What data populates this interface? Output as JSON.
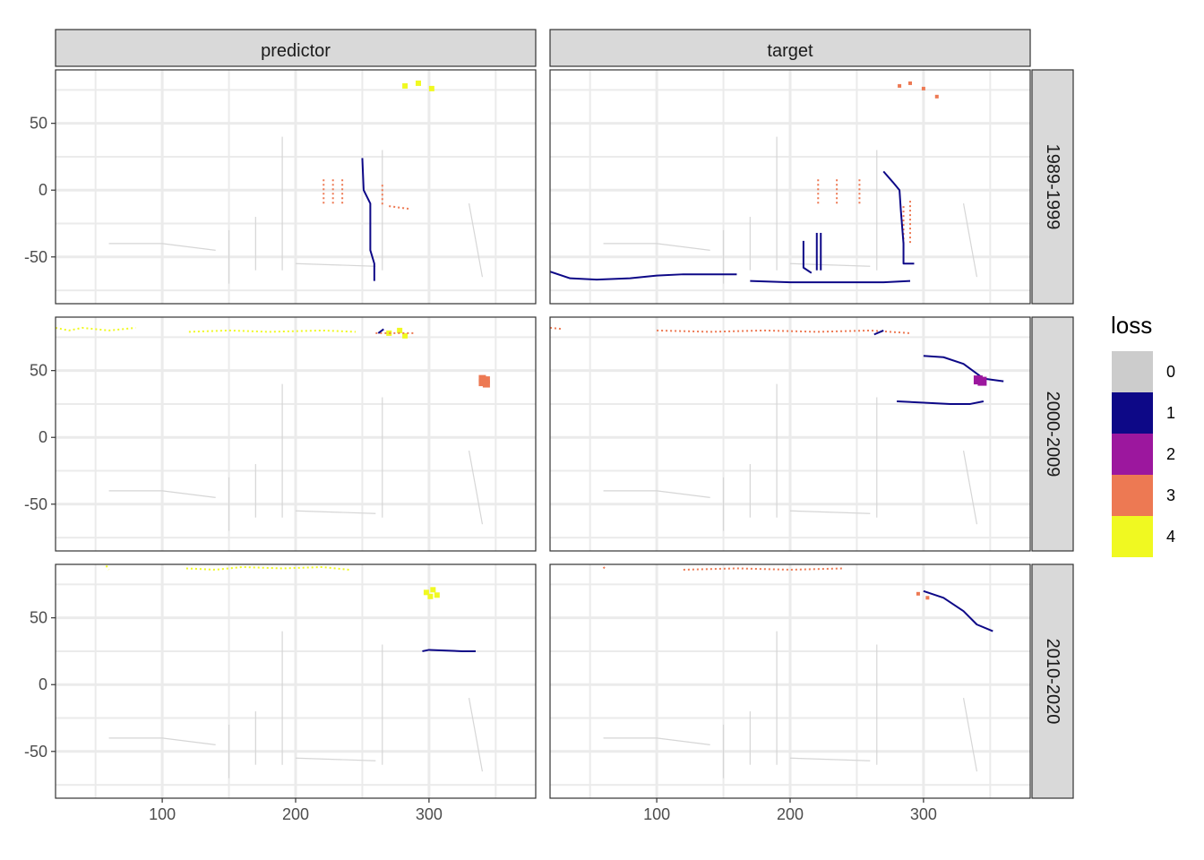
{
  "chart_data": {
    "type": "heatmap",
    "facet_columns": [
      "predictor",
      "target"
    ],
    "facet_rows": [
      "1989-1999",
      "2000-2009",
      "2010-2020"
    ],
    "x_ticks": [
      100,
      200,
      300
    ],
    "y_ticks": [
      50,
      0,
      -50
    ],
    "xlim": [
      20,
      380
    ],
    "ylim": [
      -85,
      90
    ],
    "legend": {
      "title": "loss",
      "position": "right",
      "levels": [
        {
          "label": "0",
          "color": "#cccccc"
        },
        {
          "label": "1",
          "color": "#0d0887"
        },
        {
          "label": "2",
          "color": "#9c179e"
        },
        {
          "label": "3",
          "color": "#ed7953"
        },
        {
          "label": "4",
          "color": "#f0f921"
        }
      ]
    },
    "grid": true,
    "background_color": "#ffffff",
    "panels": [
      {
        "col": "predictor",
        "row": "1989-1999",
        "tracks": [
          {
            "loss": 4,
            "type": "blob",
            "points": [
              [
                282,
                78
              ],
              [
                292,
                80
              ],
              [
                302,
                76
              ]
            ],
            "r": 3
          },
          {
            "loss": 3,
            "type": "dash",
            "points": [
              [
                221,
                8
              ],
              [
                221,
                -12
              ]
            ]
          },
          {
            "loss": 3,
            "type": "dash",
            "points": [
              [
                228,
                8
              ],
              [
                228,
                -12
              ]
            ]
          },
          {
            "loss": 3,
            "type": "dash",
            "points": [
              [
                235,
                8
              ],
              [
                235,
                -12
              ]
            ]
          },
          {
            "loss": 3,
            "type": "dash",
            "points": [
              [
                265,
                4
              ],
              [
                265,
                -12
              ]
            ]
          },
          {
            "loss": 3,
            "type": "dash",
            "points": [
              [
                270,
                -12
              ],
              [
                285,
                -14
              ]
            ]
          },
          {
            "loss": 1,
            "type": "line",
            "points": [
              [
                250,
                24
              ],
              [
                251,
                0
              ],
              [
                256,
                -10
              ],
              [
                256,
                -45
              ],
              [
                259,
                -55
              ],
              [
                259,
                -68
              ]
            ]
          }
        ]
      },
      {
        "col": "target",
        "row": "1989-1999",
        "tracks": [
          {
            "loss": 3,
            "type": "blob",
            "points": [
              [
                282,
                78
              ],
              [
                290,
                80
              ],
              [
                300,
                76
              ],
              [
                310,
                70
              ]
            ],
            "r": 2
          },
          {
            "loss": 3,
            "type": "dash",
            "points": [
              [
                221,
                8
              ],
              [
                221,
                -12
              ]
            ]
          },
          {
            "loss": 3,
            "type": "dash",
            "points": [
              [
                235,
                8
              ],
              [
                235,
                -12
              ]
            ]
          },
          {
            "loss": 3,
            "type": "dash",
            "points": [
              [
                252,
                8
              ],
              [
                252,
                -12
              ]
            ]
          },
          {
            "loss": 3,
            "type": "dash",
            "points": [
              [
                285,
                -12
              ],
              [
                285,
                -40
              ]
            ]
          },
          {
            "loss": 3,
            "type": "dash",
            "points": [
              [
                290,
                -8
              ],
              [
                290,
                -40
              ]
            ]
          },
          {
            "loss": 1,
            "type": "line",
            "points": [
              [
                270,
                14
              ],
              [
                277,
                6
              ],
              [
                282,
                0
              ],
              [
                283,
                -15
              ],
              [
                285,
                -40
              ],
              [
                285,
                -55
              ],
              [
                293,
                -55
              ]
            ]
          },
          {
            "loss": 1,
            "type": "line",
            "points": [
              [
                210,
                -38
              ],
              [
                210,
                -58
              ],
              [
                216,
                -62
              ]
            ]
          },
          {
            "loss": 1,
            "type": "line",
            "points": [
              [
                220,
                -32
              ],
              [
                220,
                -60
              ]
            ]
          },
          {
            "loss": 1,
            "type": "line",
            "points": [
              [
                223,
                -32
              ],
              [
                223,
                -60
              ]
            ]
          },
          {
            "loss": 1,
            "type": "line",
            "points": [
              [
                20,
                -61
              ],
              [
                35,
                -66
              ],
              [
                55,
                -67
              ],
              [
                80,
                -66
              ],
              [
                100,
                -64
              ],
              [
                120,
                -63
              ],
              [
                140,
                -63
              ],
              [
                160,
                -63
              ]
            ]
          },
          {
            "loss": 1,
            "type": "line",
            "points": [
              [
                170,
                -68
              ],
              [
                200,
                -69
              ],
              [
                240,
                -69
              ],
              [
                270,
                -69
              ],
              [
                290,
                -68
              ]
            ]
          }
        ]
      },
      {
        "col": "predictor",
        "row": "2000-2009",
        "tracks": [
          {
            "loss": 4,
            "type": "dash",
            "points": [
              [
                20,
                82
              ],
              [
                30,
                80
              ],
              [
                40,
                82
              ],
              [
                60,
                80
              ],
              [
                80,
                82
              ]
            ]
          },
          {
            "loss": 4,
            "type": "dash",
            "points": [
              [
                120,
                79
              ],
              [
                150,
                80
              ],
              [
                180,
                79
              ],
              [
                220,
                80
              ],
              [
                245,
                79
              ]
            ]
          },
          {
            "loss": 4,
            "type": "blob",
            "points": [
              [
                270,
                78
              ],
              [
                278,
                80
              ],
              [
                282,
                76
              ]
            ],
            "r": 3
          },
          {
            "loss": 3,
            "type": "blob",
            "points": [
              [
                340,
                44
              ],
              [
                343,
                43
              ],
              [
                340,
                41
              ],
              [
                343,
                40
              ]
            ],
            "r": 4
          },
          {
            "loss": 3,
            "type": "dash",
            "points": [
              [
                260,
                78
              ],
              [
                290,
                78
              ]
            ]
          },
          {
            "loss": 1,
            "type": "line",
            "points": [
              [
                262,
                78
              ],
              [
                266,
                81
              ]
            ]
          }
        ]
      },
      {
        "col": "target",
        "row": "2000-2009",
        "tracks": [
          {
            "loss": 3,
            "type": "dash",
            "points": [
              [
                20,
                82
              ],
              [
                30,
                81
              ]
            ]
          },
          {
            "loss": 3,
            "type": "dash",
            "points": [
              [
                100,
                80
              ],
              [
                140,
                79
              ],
              [
                180,
                80
              ],
              [
                220,
                79
              ],
              [
                260,
                80
              ],
              [
                290,
                78
              ]
            ]
          },
          {
            "loss": 1,
            "type": "line",
            "points": [
              [
                263,
                77
              ],
              [
                270,
                80
              ]
            ]
          },
          {
            "loss": 1,
            "type": "line",
            "points": [
              [
                300,
                61
              ],
              [
                315,
                60
              ],
              [
                330,
                55
              ],
              [
                345,
                44
              ],
              [
                360,
                42
              ]
            ]
          },
          {
            "loss": 2,
            "type": "blob",
            "points": [
              [
                341,
                43
              ],
              [
                344,
                42
              ]
            ],
            "r": 5
          },
          {
            "loss": 1,
            "type": "line",
            "points": [
              [
                280,
                27
              ],
              [
                300,
                26
              ],
              [
                320,
                25
              ],
              [
                335,
                25
              ],
              [
                345,
                27
              ]
            ]
          }
        ]
      },
      {
        "col": "predictor",
        "row": "2010-2020",
        "tracks": [
          {
            "loss": 4,
            "type": "dash",
            "points": [
              [
                58,
                89
              ],
              [
                60,
                86
              ]
            ]
          },
          {
            "loss": 4,
            "type": "dash",
            "points": [
              [
                118,
                87
              ],
              [
                140,
                86
              ],
              [
                160,
                88
              ],
              [
                190,
                87
              ],
              [
                220,
                88
              ],
              [
                240,
                86
              ]
            ]
          },
          {
            "loss": 4,
            "type": "blob",
            "points": [
              [
                298,
                69
              ],
              [
                303,
                71
              ],
              [
                301,
                66
              ],
              [
                306,
                67
              ]
            ],
            "r": 3
          },
          {
            "loss": 1,
            "type": "line",
            "points": [
              [
                295,
                25
              ],
              [
                300,
                26
              ],
              [
                325,
                25
              ],
              [
                335,
                25
              ]
            ]
          }
        ]
      },
      {
        "col": "target",
        "row": "2010-2020",
        "tracks": [
          {
            "loss": 3,
            "type": "dash",
            "points": [
              [
                60,
                88
              ],
              [
                62,
                86
              ]
            ]
          },
          {
            "loss": 3,
            "type": "dash",
            "points": [
              [
                120,
                86
              ],
              [
                160,
                87
              ],
              [
                200,
                86
              ],
              [
                240,
                87
              ]
            ]
          },
          {
            "loss": 3,
            "type": "blob",
            "points": [
              [
                296,
                68
              ],
              [
                303,
                65
              ]
            ],
            "r": 2
          },
          {
            "loss": 1,
            "type": "line",
            "points": [
              [
                300,
                70
              ],
              [
                315,
                65
              ],
              [
                330,
                55
              ],
              [
                340,
                45
              ],
              [
                352,
                40
              ]
            ]
          }
        ]
      }
    ]
  }
}
